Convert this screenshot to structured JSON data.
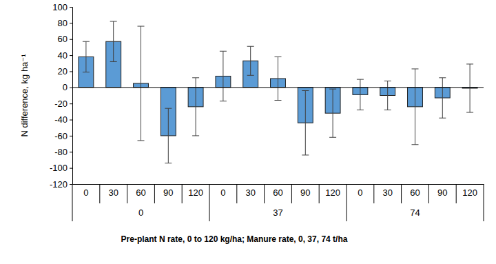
{
  "chart_data": {
    "type": "bar",
    "y_label": "N difference, kg ha⁻¹",
    "x_label": "Pre-plant N rate, 0 to 120  kg/ha; Manure rate, 0, 37, 74 t/ha",
    "categories": [
      "0",
      "30",
      "60",
      "90",
      "120",
      "0",
      "30",
      "60",
      "90",
      "120",
      "0",
      "30",
      "60",
      "90",
      "120"
    ],
    "groups": [
      "0",
      "37",
      "74"
    ],
    "values": [
      38,
      57,
      5,
      -60,
      -24,
      14,
      33,
      11,
      -44,
      -32,
      -9,
      -10,
      -24,
      -13,
      -1
    ],
    "errors": [
      19,
      25,
      71,
      34,
      36,
      31,
      18,
      27,
      40,
      30,
      19,
      18,
      47,
      25,
      30
    ],
    "color": "#5b9bd5",
    "ylim": [
      -120,
      100
    ],
    "yticks": [
      -120,
      -100,
      -80,
      -60,
      -40,
      -20,
      0,
      20,
      40,
      60,
      80,
      100
    ],
    "grid": false
  }
}
